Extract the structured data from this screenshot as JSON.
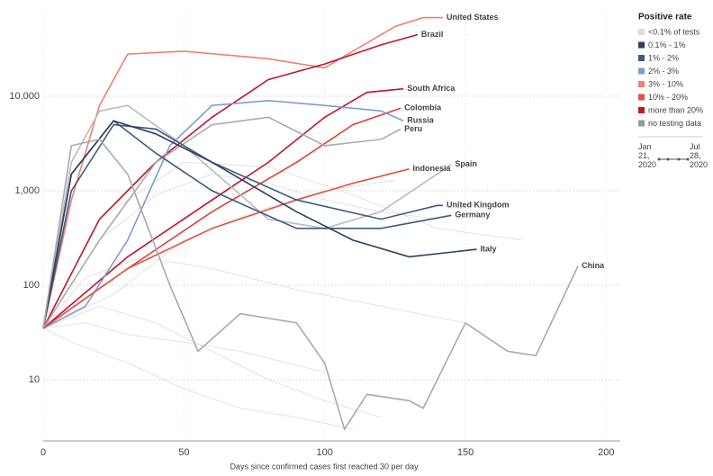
{
  "chart_data": {
    "type": "line",
    "x_label": "Days since confirmed cases first reached 30 per day",
    "xlim": [
      0,
      205
    ],
    "xticks": [
      0,
      50,
      100,
      150,
      200
    ],
    "ylim": [
      2.25,
      84000
    ],
    "log_y": true,
    "grid": true,
    "yticks": [
      10,
      100,
      {
        "value": 1000,
        "label": "1,000"
      },
      {
        "value": 10000,
        "label": "10,000"
      }
    ],
    "legend": {
      "title": "Positive rate",
      "items": [
        {
          "label": "<0.1% of tests",
          "color": "#dddddd"
        },
        {
          "label": "0.1% - 1%",
          "color": "#2e3f5c"
        },
        {
          "label": "1% - 2%",
          "color": "#3e5a80"
        },
        {
          "label": "2% - 3%",
          "color": "#7f9ccf"
        },
        {
          "label": "3% - 10%",
          "color": "#f08070"
        },
        {
          "label": "10% - 20%",
          "color": "#e05545"
        },
        {
          "label": "more than 20%",
          "color": "#c0152a"
        },
        {
          "label": "no testing data",
          "color": "#999999"
        }
      ]
    },
    "date_range": [
      "Jan 21, 2020",
      "Jul 28, 2020"
    ],
    "background_lines": [
      {
        "x": [
          0,
          20,
          40,
          60,
          80,
          100,
          120,
          140
        ],
        "values": [
          35,
          300,
          900,
          1500,
          1200,
          800,
          600,
          500
        ]
      },
      {
        "x": [
          0,
          20,
          40,
          60,
          80,
          100,
          120
        ],
        "values": [
          35,
          60,
          40,
          20,
          10,
          6,
          4
        ]
      },
      {
        "x": [
          0,
          15,
          35,
          60,
          90,
          120,
          150
        ],
        "values": [
          35,
          120,
          200,
          150,
          90,
          60,
          40
        ]
      },
      {
        "x": [
          0,
          10,
          30,
          50,
          70,
          90,
          110
        ],
        "values": [
          35,
          25,
          15,
          8,
          5,
          4,
          3
        ]
      },
      {
        "x": [
          0,
          20,
          50,
          80,
          110,
          140,
          170
        ],
        "values": [
          35,
          500,
          2000,
          1800,
          900,
          400,
          300
        ]
      },
      {
        "x": [
          0,
          25,
          50,
          75,
          100,
          125
        ],
        "values": [
          35,
          80,
          300,
          600,
          1000,
          1300
        ]
      },
      {
        "x": [
          0,
          15,
          30,
          50,
          70,
          100
        ],
        "values": [
          35,
          40,
          30,
          25,
          20,
          12
        ]
      }
    ],
    "series": [
      {
        "name": "United States",
        "color": "#f08070",
        "x": [
          0,
          10,
          20,
          30,
          50,
          80,
          100,
          110,
          125,
          135,
          142
        ],
        "values": [
          35,
          800,
          8000,
          28000,
          30000,
          25000,
          20000,
          30000,
          55000,
          68000,
          68000
        ]
      },
      {
        "name": "Brazil",
        "color": "#c0152a",
        "x": [
          0,
          20,
          40,
          60,
          80,
          100,
          120,
          133
        ],
        "values": [
          35,
          500,
          2000,
          6000,
          15000,
          22000,
          35000,
          45000
        ]
      },
      {
        "name": "South Africa",
        "color": "#c0152a",
        "x": [
          0,
          30,
          60,
          80,
          100,
          115,
          128
        ],
        "values": [
          35,
          200,
          800,
          2000,
          6000,
          11000,
          12000
        ]
      },
      {
        "name": "Colombia",
        "color": "#d9413a",
        "x": [
          0,
          30,
          60,
          90,
          110,
          127
        ],
        "values": [
          35,
          150,
          600,
          2000,
          5000,
          7500
        ]
      },
      {
        "name": "Russia",
        "color": "#7f9ccf",
        "x": [
          0,
          15,
          30,
          45,
          60,
          80,
          100,
          120,
          128
        ],
        "values": [
          35,
          60,
          300,
          3000,
          8000,
          9000,
          8000,
          7000,
          5500
        ]
      },
      {
        "name": "Peru",
        "color": "#aaaaaa",
        "x": [
          0,
          20,
          40,
          60,
          80,
          100,
          120,
          127
        ],
        "values": [
          35,
          300,
          2000,
          5000,
          6000,
          3000,
          3500,
          4500
        ]
      },
      {
        "name": "Spain",
        "color": "#bbbbbb",
        "x": [
          0,
          10,
          20,
          30,
          50,
          80,
          100,
          120,
          145
        ],
        "values": [
          35,
          2000,
          7000,
          8000,
          3000,
          500,
          400,
          600,
          1900
        ]
      },
      {
        "name": "Indonesia",
        "color": "#e05545",
        "x": [
          0,
          30,
          60,
          90,
          110,
          130
        ],
        "values": [
          35,
          150,
          400,
          800,
          1200,
          1700
        ]
      },
      {
        "name": "United Kingdom",
        "color": "#3e5a80",
        "x": [
          0,
          10,
          25,
          40,
          60,
          90,
          120,
          140,
          142
        ],
        "values": [
          35,
          1000,
          5000,
          4500,
          2000,
          800,
          500,
          700,
          700
        ]
      },
      {
        "name": "Germany",
        "color": "#3e5a80",
        "x": [
          0,
          10,
          25,
          40,
          60,
          90,
          120,
          145
        ],
        "values": [
          35,
          1500,
          5500,
          2500,
          1000,
          400,
          400,
          550
        ]
      },
      {
        "name": "Italy",
        "color": "#2e3f5c",
        "x": [
          0,
          10,
          25,
          40,
          60,
          90,
          110,
          130,
          154
        ],
        "values": [
          35,
          1500,
          5500,
          4000,
          2000,
          600,
          300,
          200,
          240
        ]
      },
      {
        "name": "China",
        "color": "#aaaaaa",
        "x": [
          0,
          10,
          20,
          30,
          45,
          55,
          70,
          90,
          100,
          107,
          115,
          130,
          135,
          150,
          165,
          175,
          190
        ],
        "values": [
          35,
          3000,
          3500,
          1500,
          100,
          20,
          50,
          40,
          15,
          3,
          7,
          6,
          5,
          40,
          20,
          18,
          160
        ]
      }
    ]
  }
}
